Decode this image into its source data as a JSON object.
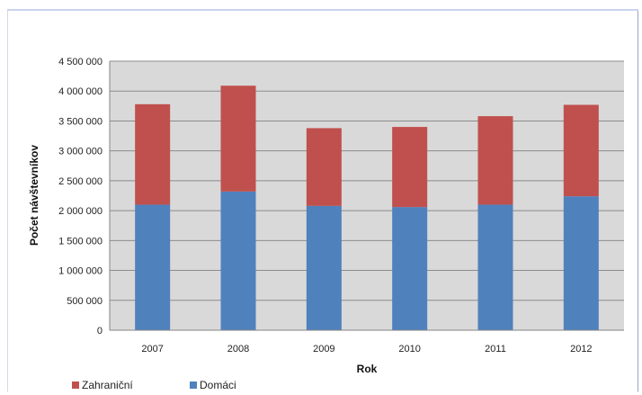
{
  "chart_data": {
    "type": "bar",
    "stacked": true,
    "categories": [
      "2007",
      "2008",
      "2009",
      "2010",
      "2011",
      "2012"
    ],
    "series": [
      {
        "name": "Domáci",
        "color": "#4f81bd",
        "values": [
          2100000,
          2320000,
          2080000,
          2060000,
          2100000,
          2240000
        ]
      },
      {
        "name": "Zahraniční",
        "color": "#c0504d",
        "values": [
          1680000,
          1770000,
          1300000,
          1340000,
          1480000,
          1530000
        ]
      }
    ],
    "yticks": [
      "0",
      "500 000",
      "1 000 000",
      "1 500 000",
      "2 000 000",
      "2 500 000",
      "3 000 000",
      "3 500 000",
      "4 000 000",
      "4 500 000"
    ],
    "ylim": [
      0,
      4500000
    ],
    "xlabel": "Rok",
    "ylabel": "Počet návštevníkov",
    "grid": true,
    "legend_position": "bottom-left",
    "legend": [
      "Zahraniční",
      "Domáci"
    ]
  }
}
